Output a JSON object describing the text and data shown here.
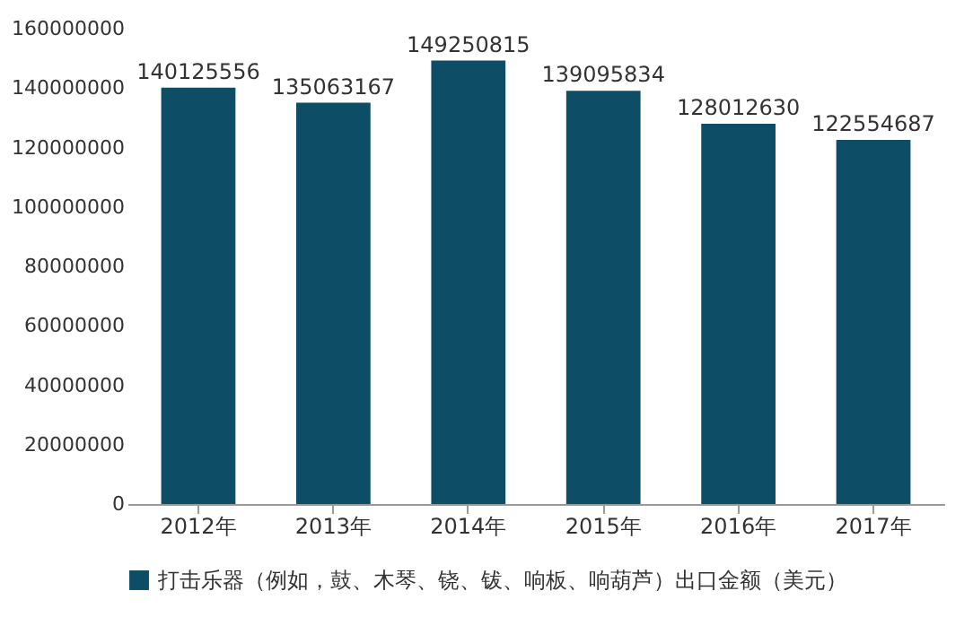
{
  "chart_data": {
    "type": "bar",
    "categories": [
      "2012年",
      "2013年",
      "2014年",
      "2015年",
      "2016年",
      "2017年"
    ],
    "series": [
      {
        "name": "打击乐器（例如，鼓、木琴、铙、钹、响板、响葫芦）出口金额（美元）",
        "color": "#0e4d66",
        "values": [
          140125556,
          135063167,
          149250815,
          139095834,
          128012630,
          122554687
        ]
      }
    ],
    "ylim": [
      0,
      160000000
    ],
    "yticks": [
      0,
      20000000,
      40000000,
      60000000,
      80000000,
      100000000,
      120000000,
      140000000,
      160000000
    ],
    "data_labels": true,
    "grid": false,
    "legend": "bottom"
  }
}
